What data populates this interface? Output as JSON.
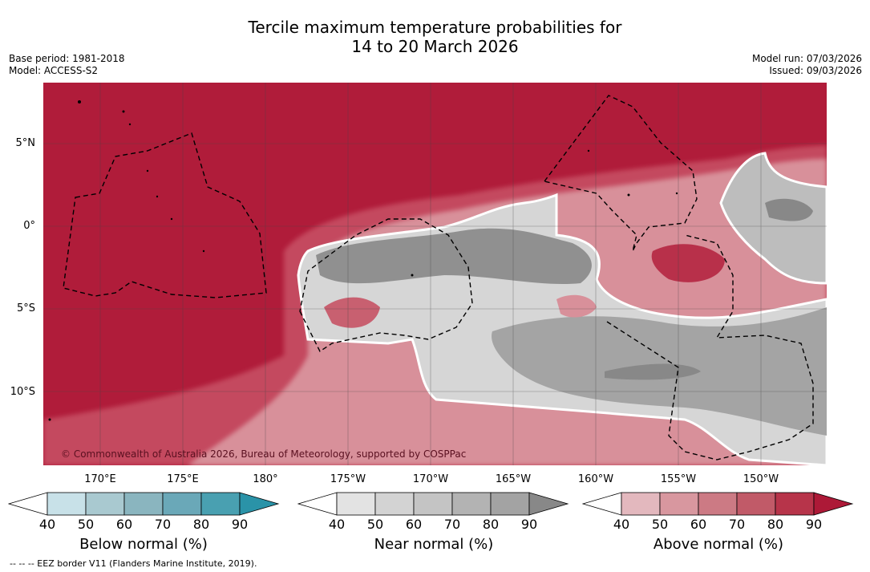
{
  "title": {
    "line1": "Tercile maximum temperature probabilities for",
    "line2": "14 to 20 March 2026"
  },
  "info_left": {
    "base_period": "Base period: 1981-2018",
    "model": "Model: ACCESS-S2"
  },
  "info_right": {
    "model_run": "Model run: 07/03/2026",
    "issued": "Issued: 09/03/2026"
  },
  "map": {
    "lat_labels": [
      "5°N",
      "0°",
      "5°S",
      "10°S"
    ],
    "lon_labels": [
      "170°E",
      "175°E",
      "180°",
      "175°W",
      "170°W",
      "165°W",
      "160°W",
      "155°W",
      "150°W"
    ],
    "copyright": "© Commonwealth of Australia 2026, Bureau of Meteorology, supported by COSPPac",
    "colors": {
      "above_strong": "#b01c3a",
      "near_dark": "#8a8a8a",
      "near_light": "#d8d8d8"
    }
  },
  "colorbars": [
    {
      "name": "below",
      "label": "Below normal (%)",
      "ticks": [
        "40",
        "50",
        "60",
        "70",
        "80",
        "90"
      ],
      "colors": [
        "#ffffff",
        "#c8e1e8",
        "#a9c9d0",
        "#8ab5bf",
        "#6aa8b8",
        "#49a0b1",
        "#2a93a8"
      ]
    },
    {
      "name": "near",
      "label": "Near normal (%)",
      "ticks": [
        "40",
        "50",
        "60",
        "70",
        "80",
        "90"
      ],
      "colors": [
        "#ffffff",
        "#e3e3e3",
        "#d3d3d3",
        "#c4c4c4",
        "#b3b3b3",
        "#a3a3a3",
        "#888888"
      ]
    },
    {
      "name": "above",
      "label": "Above normal (%)",
      "ticks": [
        "40",
        "50",
        "60",
        "70",
        "80",
        "90"
      ],
      "colors": [
        "#ffffff",
        "#e3b8be",
        "#d8979f",
        "#cc7a84",
        "#c15a68",
        "#b7344a",
        "#ad1937"
      ]
    }
  ],
  "footnote": "--  --  -- EEZ border V11 (Flanders Marine Institute, 2019)."
}
